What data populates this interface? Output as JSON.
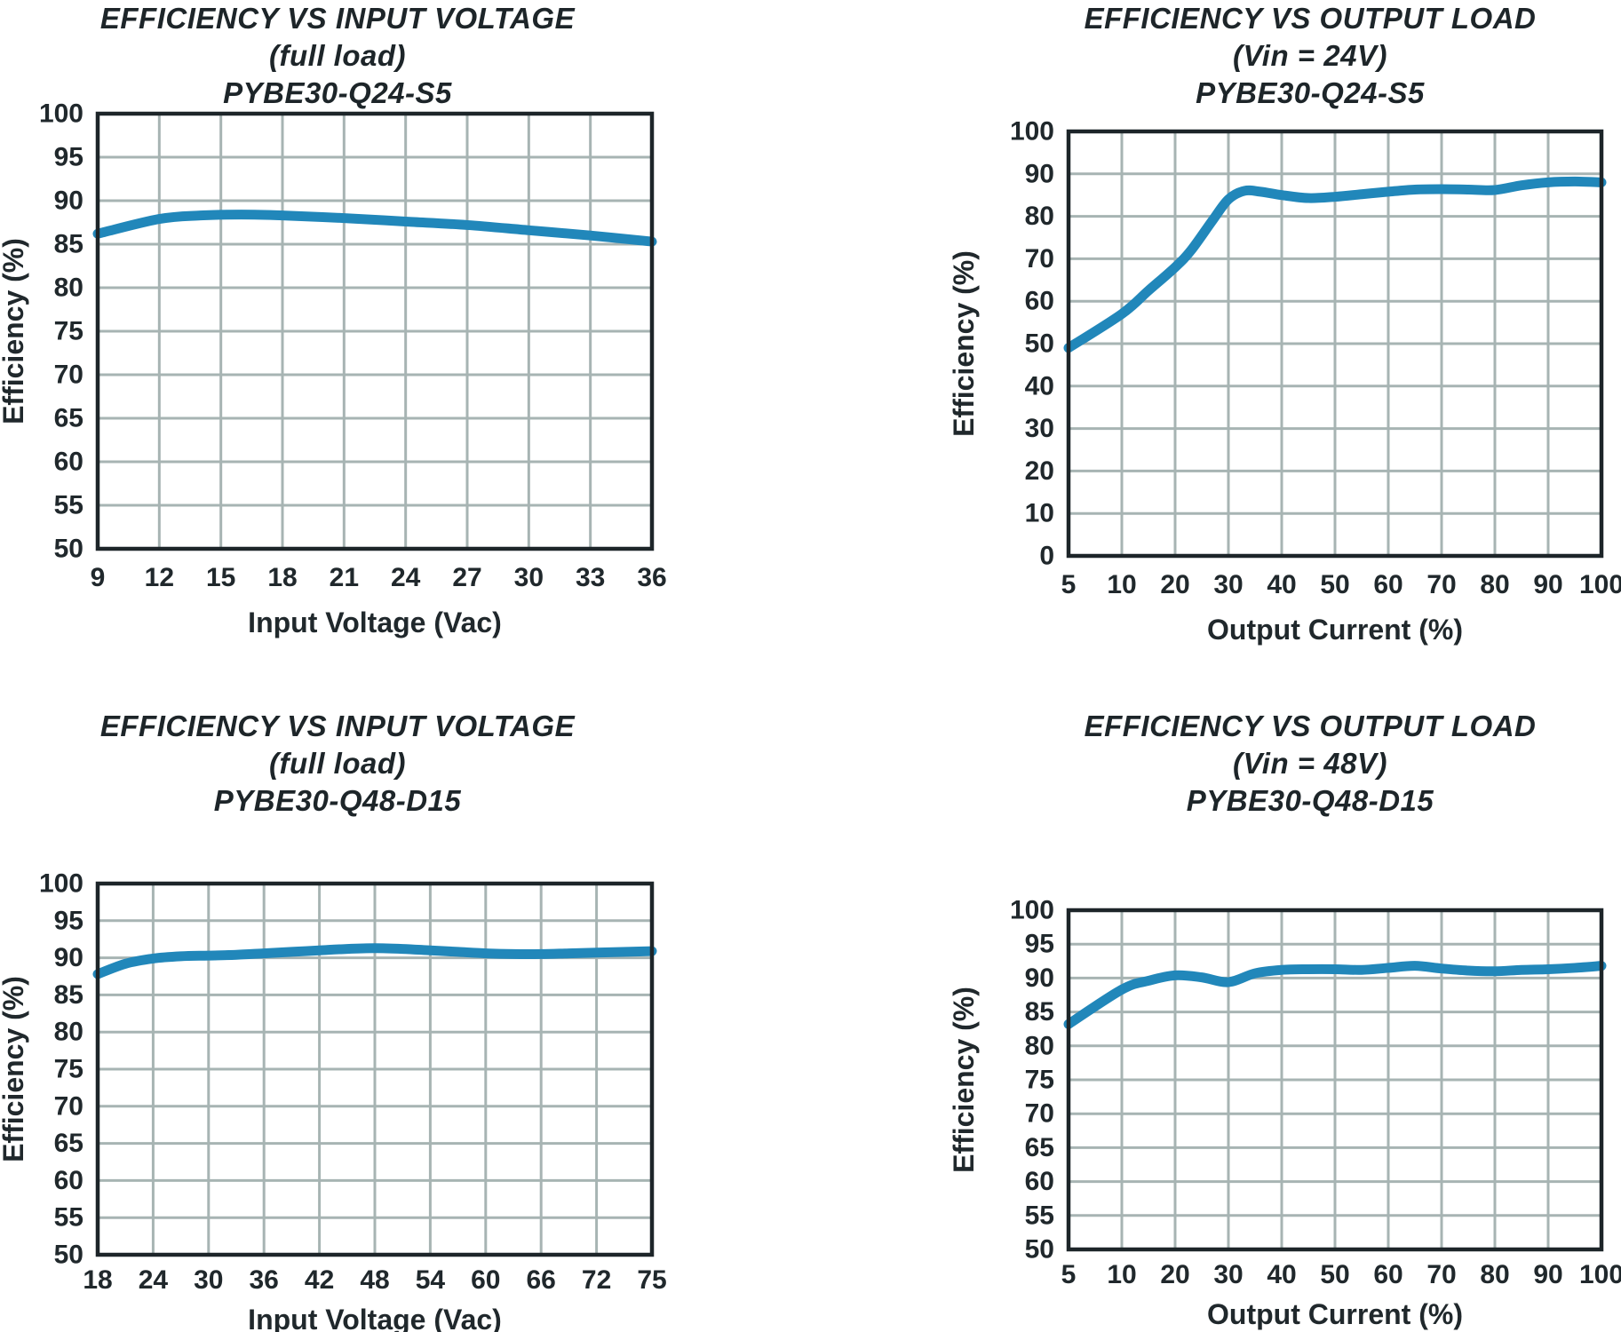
{
  "colors": {
    "curve": "#2187ba",
    "grid": "#a7b4b3",
    "frame": "#1d2529",
    "text": "#20282c"
  },
  "chart_data": [
    {
      "type": "line",
      "title_lines": [
        "EFFICIENCY VS INPUT VOLTAGE",
        "(full load)",
        "PYBE30-Q24-S5"
      ],
      "xlabel": "Input Voltage (Vac)",
      "ylabel": "Efficiency (%)",
      "x_ticks": [
        9,
        12,
        15,
        18,
        21,
        24,
        27,
        30,
        33,
        36
      ],
      "y_min": 50,
      "y_max": 100,
      "y_step": 5,
      "grid": true,
      "legend": "none",
      "series": [
        {
          "name": "efficiency",
          "points": [
            [
              9,
              86.2
            ],
            [
              12,
              87.9
            ],
            [
              14,
              88.3
            ],
            [
              16,
              88.4
            ],
            [
              18,
              88.3
            ],
            [
              21,
              88.0
            ],
            [
              24,
              87.6
            ],
            [
              27,
              87.2
            ],
            [
              30,
              86.6
            ],
            [
              33,
              86.0
            ],
            [
              36,
              85.3
            ]
          ]
        }
      ]
    },
    {
      "type": "line",
      "title_lines": [
        "EFFICIENCY VS OUTPUT LOAD",
        "(Vin = 24V)",
        "PYBE30-Q24-S5"
      ],
      "xlabel": "Output Current (%)",
      "ylabel": "Efficiency (%)",
      "x_ticks": [
        5,
        10,
        20,
        30,
        40,
        50,
        60,
        70,
        80,
        90,
        100
      ],
      "y_min": 0,
      "y_max": 100,
      "y_step": 10,
      "grid": true,
      "legend": "none",
      "series": [
        {
          "name": "efficiency",
          "points": [
            [
              5,
              49
            ],
            [
              10,
              57
            ],
            [
              15,
              62.5
            ],
            [
              20,
              68
            ],
            [
              23,
              72
            ],
            [
              27,
              79
            ],
            [
              30,
              84
            ],
            [
              33,
              86
            ],
            [
              36,
              85.8
            ],
            [
              40,
              85
            ],
            [
              45,
              84.3
            ],
            [
              50,
              84.6
            ],
            [
              55,
              85.2
            ],
            [
              60,
              85.8
            ],
            [
              65,
              86.3
            ],
            [
              70,
              86.4
            ],
            [
              75,
              86.3
            ],
            [
              80,
              86.2
            ],
            [
              85,
              87.3
            ],
            [
              90,
              88
            ],
            [
              95,
              88.2
            ],
            [
              100,
              88
            ]
          ]
        }
      ]
    },
    {
      "type": "line",
      "title_lines": [
        "EFFICIENCY VS INPUT VOLTAGE",
        "(full load)",
        "PYBE30-Q48-D15"
      ],
      "xlabel": "Input Voltage (Vac)",
      "ylabel": "Efficiency (%)",
      "x_ticks": [
        18,
        24,
        30,
        36,
        42,
        48,
        54,
        60,
        66,
        72,
        75
      ],
      "y_min": 50,
      "y_max": 100,
      "y_step": 5,
      "grid": true,
      "legend": "none",
      "series": [
        {
          "name": "efficiency",
          "points": [
            [
              18,
              87.8
            ],
            [
              21,
              89.2
            ],
            [
              24,
              89.9
            ],
            [
              27,
              90.2
            ],
            [
              30,
              90.3
            ],
            [
              33,
              90.4
            ],
            [
              36,
              90.6
            ],
            [
              39,
              90.8
            ],
            [
              42,
              91.0
            ],
            [
              45,
              91.2
            ],
            [
              48,
              91.3
            ],
            [
              51,
              91.2
            ],
            [
              54,
              91.0
            ],
            [
              57,
              90.8
            ],
            [
              60,
              90.6
            ],
            [
              63,
              90.5
            ],
            [
              66,
              90.5
            ],
            [
              69,
              90.6
            ],
            [
              72,
              90.7
            ],
            [
              75,
              90.9
            ]
          ]
        }
      ]
    },
    {
      "type": "line",
      "title_lines": [
        "EFFICIENCY VS OUTPUT LOAD",
        "(Vin = 48V)",
        "PYBE30-Q48-D15"
      ],
      "xlabel": "Output Current (%)",
      "ylabel": "Efficiency (%)",
      "x_ticks": [
        5,
        10,
        20,
        30,
        40,
        50,
        60,
        70,
        80,
        90,
        100
      ],
      "y_min": 50,
      "y_max": 100,
      "y_step": 5,
      "grid": true,
      "legend": "none",
      "series": [
        {
          "name": "efficiency",
          "points": [
            [
              5,
              83.2
            ],
            [
              10,
              88.3
            ],
            [
              15,
              89.6
            ],
            [
              20,
              90.4
            ],
            [
              25,
              90.1
            ],
            [
              30,
              89.4
            ],
            [
              35,
              90.7
            ],
            [
              40,
              91.2
            ],
            [
              45,
              91.3
            ],
            [
              50,
              91.3
            ],
            [
              55,
              91.2
            ],
            [
              60,
              91.5
            ],
            [
              65,
              91.8
            ],
            [
              70,
              91.4
            ],
            [
              75,
              91.1
            ],
            [
              80,
              91.0
            ],
            [
              85,
              91.2
            ],
            [
              90,
              91.3
            ],
            [
              95,
              91.5
            ],
            [
              100,
              91.8
            ]
          ]
        }
      ]
    }
  ]
}
